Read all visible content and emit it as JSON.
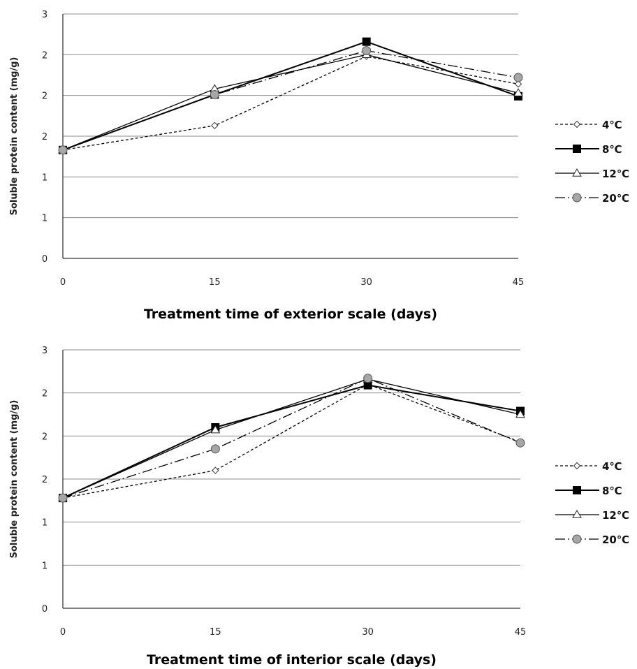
{
  "chart_data": [
    {
      "type": "line",
      "xlabel": "Treatment time of exterior scale (days)",
      "ylabel": "Soluble protein content (mg/g)",
      "x": [
        0,
        15,
        30,
        45
      ],
      "ylim": [
        0,
        3
      ],
      "yticks": [
        0,
        0.5,
        1,
        1.5,
        2,
        2.5,
        3
      ],
      "ytick_labels": [
        "0",
        "1",
        "1",
        "2",
        "2",
        "2",
        "3"
      ],
      "grid": true,
      "legend_position": "right",
      "series": [
        {
          "name": "4℃",
          "values": [
            1.33,
            1.63,
            2.48,
            2.14
          ]
        },
        {
          "name": "8℃",
          "values": [
            1.33,
            2.01,
            2.66,
            1.99
          ]
        },
        {
          "name": "12℃",
          "values": [
            1.33,
            2.08,
            2.5,
            2.03
          ]
        },
        {
          "name": "20℃",
          "values": [
            1.33,
            2.01,
            2.55,
            2.22
          ]
        }
      ]
    },
    {
      "type": "line",
      "xlabel": "Treatment time of interior scale (days)",
      "ylabel": "Soluble protein content (mg/g)",
      "x": [
        0,
        15,
        30,
        45
      ],
      "ylim": [
        0,
        3
      ],
      "yticks": [
        0,
        0.5,
        1,
        1.5,
        2,
        2.5,
        3
      ],
      "ytick_labels": [
        "0",
        "1",
        "1",
        "2",
        "2",
        "2",
        "3"
      ],
      "grid": true,
      "legend_position": "right",
      "series": [
        {
          "name": "4℃",
          "values": [
            1.28,
            1.6,
            2.6,
            1.93
          ]
        },
        {
          "name": "8℃",
          "values": [
            1.28,
            2.1,
            2.59,
            2.29
          ]
        },
        {
          "name": "12℃",
          "values": [
            1.28,
            2.07,
            2.66,
            2.25
          ]
        },
        {
          "name": "20℃",
          "values": [
            1.28,
            1.85,
            2.67,
            1.92
          ]
        }
      ]
    }
  ]
}
